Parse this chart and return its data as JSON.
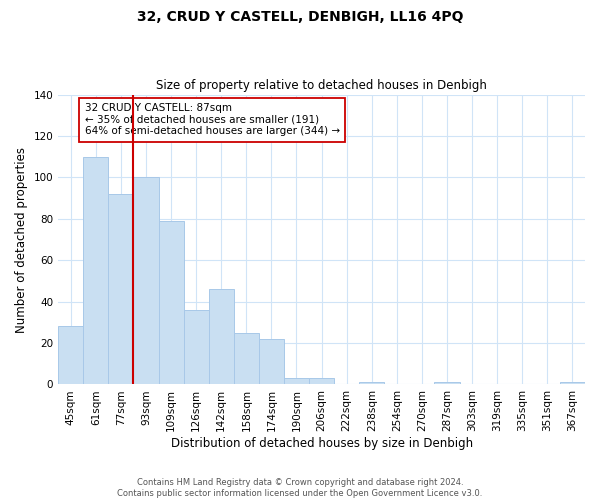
{
  "title": "32, CRUD Y CASTELL, DENBIGH, LL16 4PQ",
  "subtitle": "Size of property relative to detached houses in Denbigh",
  "xlabel": "Distribution of detached houses by size in Denbigh",
  "ylabel": "Number of detached properties",
  "bar_labels": [
    "45sqm",
    "61sqm",
    "77sqm",
    "93sqm",
    "109sqm",
    "126sqm",
    "142sqm",
    "158sqm",
    "174sqm",
    "190sqm",
    "206sqm",
    "222sqm",
    "238sqm",
    "254sqm",
    "270sqm",
    "287sqm",
    "303sqm",
    "319sqm",
    "335sqm",
    "351sqm",
    "367sqm"
  ],
  "bar_values": [
    28,
    110,
    92,
    100,
    79,
    36,
    46,
    25,
    22,
    3,
    3,
    0,
    1,
    0,
    0,
    1,
    0,
    0,
    0,
    0,
    1
  ],
  "bar_color": "#c9dff2",
  "bar_edge_color": "#a8c8e8",
  "vline_x_idx": 2,
  "vline_color": "#cc0000",
  "annotation_title": "32 CRUD Y CASTELL: 87sqm",
  "annotation_line1": "← 35% of detached houses are smaller (191)",
  "annotation_line2": "64% of semi-detached houses are larger (344) →",
  "annotation_box_color": "#ffffff",
  "annotation_box_edge": "#cc0000",
  "ylim": [
    0,
    140
  ],
  "yticks": [
    0,
    20,
    40,
    60,
    80,
    100,
    120,
    140
  ],
  "footer1": "Contains HM Land Registry data © Crown copyright and database right 2024.",
  "footer2": "Contains public sector information licensed under the Open Government Licence v3.0.",
  "background_color": "#ffffff",
  "grid_color": "#d0e4f7"
}
